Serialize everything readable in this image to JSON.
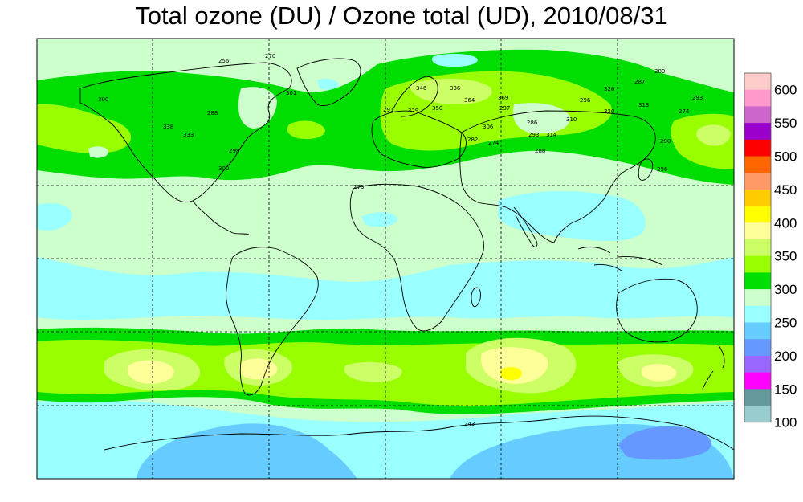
{
  "title": "Total ozone (DU) / Ozone total (UD), 2010/08/31",
  "colors": {
    "background_band": "#ccffcc",
    "land_outline": "#000000",
    "grid": "#000000"
  },
  "colorbar": {
    "labels": [
      "600",
      "550",
      "500",
      "450",
      "400",
      "350",
      "300",
      "250",
      "200",
      "150",
      "100"
    ],
    "swatches": [
      {
        "from": 625,
        "to": 600,
        "color": "#ffcccc"
      },
      {
        "from": 600,
        "to": 575,
        "color": "#ff99cc"
      },
      {
        "from": 575,
        "to": 550,
        "color": "#cc66cc"
      },
      {
        "from": 550,
        "to": 525,
        "color": "#9900cc"
      },
      {
        "from": 525,
        "to": 500,
        "color": "#ff0000"
      },
      {
        "from": 500,
        "to": 475,
        "color": "#ff6600"
      },
      {
        "from": 475,
        "to": 450,
        "color": "#ff9966"
      },
      {
        "from": 450,
        "to": 425,
        "color": "#ffcc00"
      },
      {
        "from": 425,
        "to": 400,
        "color": "#ffff00"
      },
      {
        "from": 400,
        "to": 375,
        "color": "#ffff99"
      },
      {
        "from": 375,
        "to": 350,
        "color": "#ccff66"
      },
      {
        "from": 350,
        "to": 325,
        "color": "#99ff00"
      },
      {
        "from": 325,
        "to": 300,
        "color": "#00dd00"
      },
      {
        "from": 300,
        "to": 275,
        "color": "#ccffcc"
      },
      {
        "from": 275,
        "to": 250,
        "color": "#99ffff"
      },
      {
        "from": 250,
        "to": 225,
        "color": "#66ccff"
      },
      {
        "from": 225,
        "to": 200,
        "color": "#6699ff"
      },
      {
        "from": 200,
        "to": 175,
        "color": "#9966ff"
      },
      {
        "from": 175,
        "to": 150,
        "color": "#ff00ff"
      },
      {
        "from": 150,
        "to": 125,
        "color": "#669999"
      },
      {
        "from": 125,
        "to": 100,
        "color": "#99cccc"
      }
    ]
  },
  "stations": [
    {
      "v": "270"
    },
    {
      "v": "256"
    },
    {
      "v": "300"
    },
    {
      "v": "301"
    },
    {
      "v": "338"
    },
    {
      "v": "333"
    },
    {
      "v": "298"
    },
    {
      "v": "288"
    },
    {
      "v": "300"
    },
    {
      "v": "346"
    },
    {
      "v": "336"
    },
    {
      "v": "364"
    },
    {
      "v": "369"
    },
    {
      "v": "350"
    },
    {
      "v": "329"
    },
    {
      "v": "291"
    },
    {
      "v": "297"
    },
    {
      "v": "286"
    },
    {
      "v": "310"
    },
    {
      "v": "306"
    },
    {
      "v": "293"
    },
    {
      "v": "314"
    },
    {
      "v": "288"
    },
    {
      "v": "274"
    },
    {
      "v": "282"
    },
    {
      "v": "273"
    },
    {
      "v": "326"
    },
    {
      "v": "296"
    },
    {
      "v": "320"
    },
    {
      "v": "313"
    },
    {
      "v": "287"
    },
    {
      "v": "280"
    },
    {
      "v": "274"
    },
    {
      "v": "293"
    },
    {
      "v": "290"
    },
    {
      "v": "296"
    },
    {
      "v": "243"
    }
  ]
}
